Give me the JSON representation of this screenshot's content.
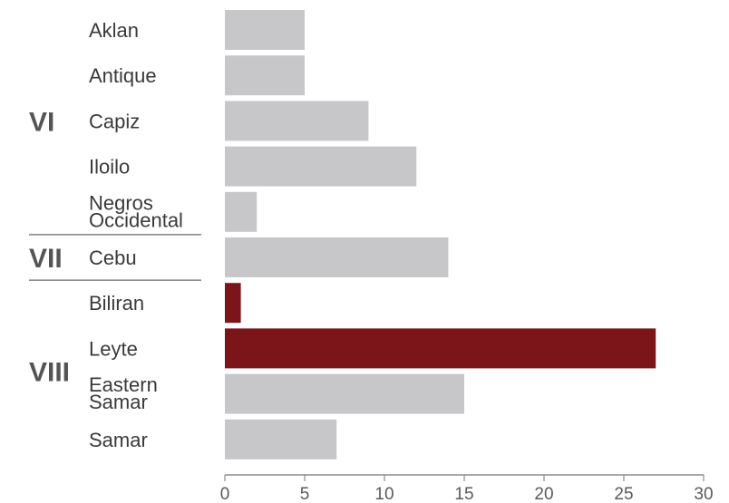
{
  "chart_data": {
    "type": "bar",
    "orientation": "horizontal",
    "categories": [
      "Aklan",
      "Antique",
      "Capiz",
      "Iloilo",
      "Negros Occidental",
      "Cebu",
      "Biliran",
      "Leyte",
      "Eastern Samar",
      "Samar"
    ],
    "values": [
      5,
      5,
      9,
      12,
      2,
      14,
      1,
      27,
      15,
      7
    ],
    "highlighted": [
      "Biliran",
      "Leyte"
    ],
    "groups": [
      {
        "label": "VI",
        "categories": [
          "Aklan",
          "Antique",
          "Capiz",
          "Iloilo",
          "Negros Occidental"
        ]
      },
      {
        "label": "VII",
        "categories": [
          "Cebu"
        ]
      },
      {
        "label": "VIII",
        "categories": [
          "Biliran",
          "Leyte",
          "Eastern Samar",
          "Samar"
        ]
      }
    ],
    "x_ticks": [
      0,
      5,
      10,
      15,
      20,
      25,
      30
    ],
    "xlim": [
      0,
      30
    ],
    "grid": false,
    "title": "",
    "xlabel": "",
    "ylabel": ""
  },
  "colors": {
    "bar_default": "#c7c7ca",
    "bar_highlight": "#7b151a",
    "axis": "#8c8c8c",
    "separator": "#6a6a6a"
  }
}
